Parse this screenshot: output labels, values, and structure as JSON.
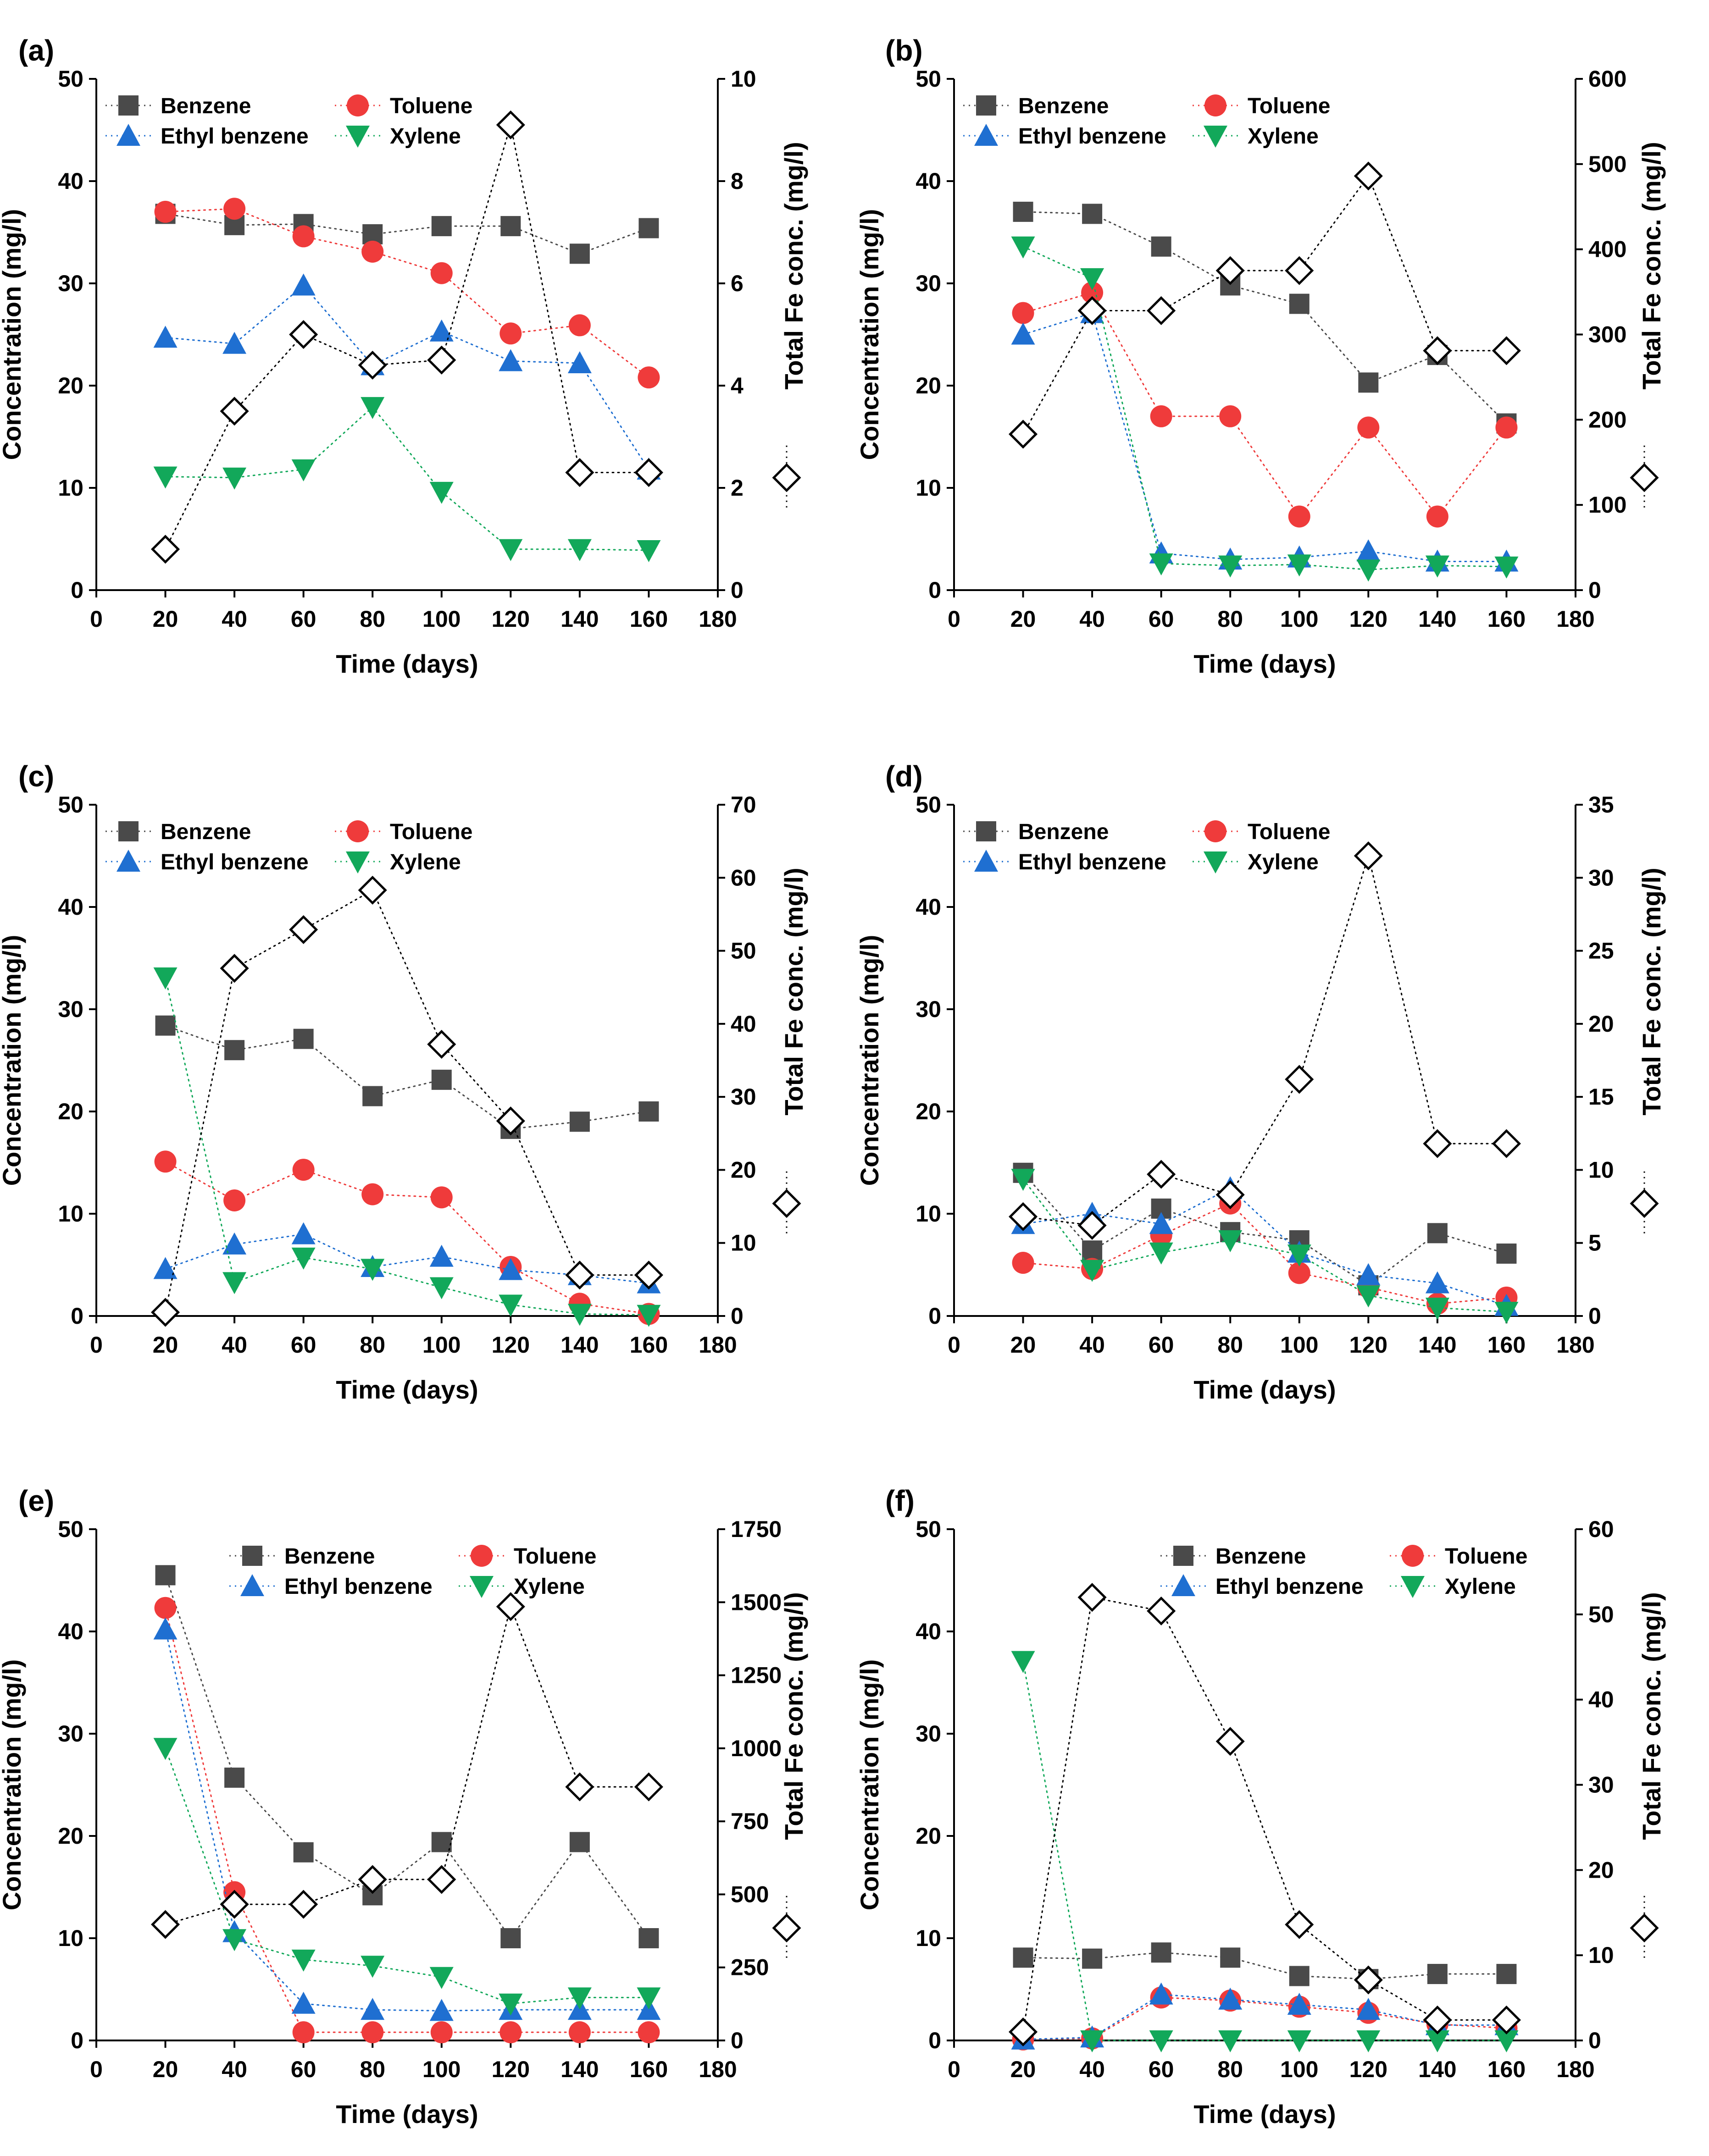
{
  "colors": {
    "benzene": "#4a4a4a",
    "toluene": "#ef3b3b",
    "ethylbenzene": "#1f6fd1",
    "xylene": "#12a85a",
    "fe": "#000000"
  },
  "chart_data": [
    {
      "type": "line",
      "panel": "(a)",
      "xlabel": "Time (days)",
      "ylabel": "Concentration (mg/l)",
      "y2label": "Total Fe conc. (mg/l)",
      "x_ticks": [
        "0",
        "20",
        "40",
        "60",
        "80",
        "100",
        "120",
        "140",
        "160",
        "180"
      ],
      "y_ticks": [
        "0",
        "10",
        "20",
        "30",
        "40",
        "50"
      ],
      "y2_ticks": [
        "0",
        "2",
        "4",
        "6",
        "8",
        "10"
      ],
      "xlim": [
        0,
        180
      ],
      "ylim": [
        0,
        50
      ],
      "y2lim": [
        0,
        10
      ],
      "legend_position": "top-left",
      "x": [
        20,
        40,
        60,
        80,
        100,
        120,
        140,
        160
      ],
      "series": [
        {
          "name": "Benzene",
          "key": "benzene",
          "marker": "square",
          "values": [
            36.8,
            35.7,
            35.8,
            34.8,
            35.6,
            35.6,
            32.9,
            35.4
          ]
        },
        {
          "name": "Toluene",
          "key": "toluene",
          "marker": "circle",
          "values": [
            37.0,
            37.3,
            34.6,
            33.1,
            31.0,
            25.1,
            25.9,
            20.8
          ]
        },
        {
          "name": "Ethyl benzene",
          "key": "ethylbenzene",
          "marker": "triangle-up",
          "values": [
            24.7,
            24.1,
            29.8,
            22.0,
            25.3,
            22.4,
            22.2,
            11.8
          ]
        },
        {
          "name": "Xylene",
          "key": "xylene",
          "marker": "triangle-down",
          "values": [
            11.1,
            11.0,
            11.8,
            17.9,
            9.6,
            4.0,
            4.0,
            3.9
          ]
        }
      ],
      "fe_series": {
        "name": "Total Fe",
        "values": [
          0.8,
          3.5,
          5.0,
          4.4,
          4.5,
          9.1,
          2.3,
          2.3
        ]
      }
    },
    {
      "type": "line",
      "panel": "(b)",
      "xlabel": "Time (days)",
      "ylabel": "Concentration (mg/l)",
      "y2label": "Total Fe conc. (mg/l)",
      "x_ticks": [
        "0",
        "20",
        "40",
        "60",
        "80",
        "100",
        "120",
        "140",
        "160",
        "180"
      ],
      "y_ticks": [
        "0",
        "10",
        "20",
        "30",
        "40",
        "50"
      ],
      "y2_ticks": [
        "0",
        "100",
        "200",
        "300",
        "400",
        "500",
        "600"
      ],
      "xlim": [
        0,
        180
      ],
      "ylim": [
        0,
        50
      ],
      "y2lim": [
        0,
        600
      ],
      "legend_position": "top-left",
      "x": [
        20,
        40,
        60,
        80,
        100,
        120,
        140,
        160
      ],
      "series": [
        {
          "name": "Benzene",
          "key": "benzene",
          "marker": "square",
          "values": [
            37.0,
            36.8,
            33.6,
            29.8,
            28.0,
            20.3,
            23.0,
            16.3
          ]
        },
        {
          "name": "Toluene",
          "key": "toluene",
          "marker": "circle",
          "values": [
            27.1,
            29.1,
            17.0,
            17.0,
            7.2,
            15.9,
            7.2,
            15.9
          ]
        },
        {
          "name": "Ethyl benzene",
          "key": "ethylbenzene",
          "marker": "triangle-up",
          "values": [
            25.0,
            27.1,
            3.6,
            3.0,
            3.2,
            3.8,
            2.8,
            2.8
          ]
        },
        {
          "name": "Xylene",
          "key": "xylene",
          "marker": "triangle-down",
          "values": [
            33.6,
            30.5,
            2.6,
            2.4,
            2.5,
            2.0,
            2.4,
            2.3
          ]
        }
      ],
      "fe_series": {
        "name": "Total Fe",
        "values": [
          183,
          328,
          328,
          375,
          375,
          486,
          281,
          281
        ]
      }
    },
    {
      "type": "line",
      "panel": "(c)",
      "xlabel": "Time (days)",
      "ylabel": "Concentration (mg/l)",
      "y2label": "Total Fe conc. (mg/l)",
      "x_ticks": [
        "0",
        "20",
        "40",
        "60",
        "80",
        "100",
        "120",
        "140",
        "160",
        "180"
      ],
      "y_ticks": [
        "0",
        "10",
        "20",
        "30",
        "40",
        "50"
      ],
      "y2_ticks": [
        "0",
        "10",
        "20",
        "30",
        "40",
        "50",
        "60",
        "70"
      ],
      "xlim": [
        0,
        180
      ],
      "ylim": [
        0,
        50
      ],
      "y2lim": [
        0,
        70
      ],
      "legend_position": "top-left",
      "x": [
        20,
        40,
        60,
        80,
        100,
        120,
        140,
        160
      ],
      "series": [
        {
          "name": "Benzene",
          "key": "benzene",
          "marker": "square",
          "values": [
            28.4,
            26.0,
            27.1,
            21.5,
            23.1,
            18.3,
            19.0,
            20.0
          ]
        },
        {
          "name": "Toluene",
          "key": "toluene",
          "marker": "circle",
          "values": [
            15.1,
            11.3,
            14.3,
            11.9,
            11.6,
            4.8,
            1.2,
            0.2
          ]
        },
        {
          "name": "Ethyl benzene",
          "key": "ethylbenzene",
          "marker": "triangle-up",
          "values": [
            4.6,
            7.0,
            8.0,
            4.8,
            5.8,
            4.5,
            4.0,
            3.2
          ]
        },
        {
          "name": "Xylene",
          "key": "xylene",
          "marker": "triangle-down",
          "values": [
            33.1,
            3.3,
            5.7,
            4.6,
            2.8,
            1.1,
            0.2,
            0.1
          ]
        }
      ],
      "fe_series": {
        "name": "Total Fe",
        "values": [
          0.5,
          47.6,
          52.9,
          58.3,
          37.2,
          26.7,
          5.6,
          5.6
        ]
      }
    },
    {
      "type": "line",
      "panel": "(d)",
      "xlabel": "Time (days)",
      "ylabel": "Concentration (mg/l)",
      "y2label": "Total Fe conc. (mg/l)",
      "x_ticks": [
        "0",
        "20",
        "40",
        "60",
        "80",
        "100",
        "120",
        "140",
        "160",
        "180"
      ],
      "y_ticks": [
        "0",
        "10",
        "20",
        "30",
        "40",
        "50"
      ],
      "y2_ticks": [
        "0",
        "5",
        "10",
        "15",
        "20",
        "25",
        "30",
        "35"
      ],
      "xlim": [
        0,
        180
      ],
      "ylim": [
        0,
        50
      ],
      "y2lim": [
        0,
        35
      ],
      "legend_position": "top-left",
      "x": [
        20,
        40,
        60,
        80,
        100,
        120,
        140,
        160
      ],
      "series": [
        {
          "name": "Benzene",
          "key": "benzene",
          "marker": "square",
          "values": [
            14.0,
            6.4,
            10.5,
            8.2,
            7.4,
            3.0,
            8.1,
            6.1
          ]
        },
        {
          "name": "Toluene",
          "key": "toluene",
          "marker": "circle",
          "values": [
            5.2,
            4.6,
            7.9,
            11.0,
            4.2,
            2.8,
            1.2,
            1.8
          ]
        },
        {
          "name": "Ethyl benzene",
          "key": "ethylbenzene",
          "marker": "triangle-up",
          "values": [
            9.0,
            10.0,
            9.0,
            12.5,
            6.2,
            4.0,
            3.2,
            1.0
          ]
        },
        {
          "name": "Xylene",
          "key": "xylene",
          "marker": "triangle-down",
          "values": [
            13.4,
            4.5,
            6.2,
            7.4,
            6.0,
            2.0,
            0.8,
            0.4
          ]
        }
      ],
      "fe_series": {
        "name": "Total Fe",
        "values": [
          6.8,
          6.2,
          9.7,
          8.3,
          16.2,
          31.5,
          11.8,
          11.8
        ]
      }
    },
    {
      "type": "line",
      "panel": "(e)",
      "xlabel": "Time (days)",
      "ylabel": "Concentration (mg/l)",
      "y2label": "Total Fe conc. (mg/l)",
      "x_ticks": [
        "0",
        "20",
        "40",
        "60",
        "80",
        "100",
        "120",
        "140",
        "160",
        "180"
      ],
      "y_ticks": [
        "0",
        "10",
        "20",
        "30",
        "40",
        "50"
      ],
      "y2_ticks": [
        "0",
        "250",
        "500",
        "750",
        "1000",
        "1250",
        "1500",
        "1750"
      ],
      "xlim": [
        0,
        180
      ],
      "ylim": [
        0,
        50
      ],
      "y2lim": [
        0,
        1750
      ],
      "legend_position": "top-center",
      "x": [
        20,
        40,
        60,
        80,
        100,
        120,
        140,
        160
      ],
      "series": [
        {
          "name": "Benzene",
          "key": "benzene",
          "marker": "square",
          "values": [
            45.5,
            25.7,
            18.4,
            14.2,
            19.4,
            10.0,
            19.4,
            10.0
          ]
        },
        {
          "name": "Toluene",
          "key": "toluene",
          "marker": "circle",
          "values": [
            42.3,
            14.5,
            0.8,
            0.8,
            0.8,
            0.8,
            0.8,
            0.8
          ]
        },
        {
          "name": "Ethyl benzene",
          "key": "ethylbenzene",
          "marker": "triangle-up",
          "values": [
            40.2,
            10.6,
            3.6,
            3.0,
            2.9,
            3.0,
            3.0,
            3.0
          ]
        },
        {
          "name": "Xylene",
          "key": "xylene",
          "marker": "triangle-down",
          "values": [
            28.6,
            9.9,
            7.9,
            7.3,
            6.2,
            3.6,
            4.2,
            4.2
          ]
        }
      ],
      "fe_series": {
        "name": "Total Fe",
        "values": [
          397,
          466,
          466,
          551,
          551,
          1485,
          868,
          868
        ]
      }
    },
    {
      "type": "line",
      "panel": "(f)",
      "xlabel": "Time (days)",
      "ylabel": "Concentration (mg/l)",
      "y2label": "Total Fe conc. (mg/l)",
      "x_ticks": [
        "0",
        "20",
        "40",
        "60",
        "80",
        "100",
        "120",
        "140",
        "160",
        "180"
      ],
      "y_ticks": [
        "0",
        "10",
        "20",
        "30",
        "40",
        "50"
      ],
      "y2_ticks": [
        "0",
        "10",
        "20",
        "30",
        "40",
        "50",
        "60"
      ],
      "xlim": [
        0,
        180
      ],
      "ylim": [
        0,
        50
      ],
      "y2lim": [
        0,
        60
      ],
      "legend_position": "top-right",
      "x": [
        20,
        40,
        60,
        80,
        100,
        120,
        140,
        160
      ],
      "series": [
        {
          "name": "Benzene",
          "key": "benzene",
          "marker": "square",
          "values": [
            8.1,
            8.0,
            8.6,
            8.1,
            6.3,
            6.0,
            6.5,
            6.5
          ]
        },
        {
          "name": "Toluene",
          "key": "toluene",
          "marker": "circle",
          "values": [
            0.1,
            0.2,
            4.2,
            3.9,
            3.3,
            2.7,
            1.6,
            1.2
          ]
        },
        {
          "name": "Ethyl benzene",
          "key": "ethylbenzene",
          "marker": "triangle-up",
          "values": [
            0.1,
            0.3,
            4.5,
            4.0,
            3.5,
            3.0,
            1.5,
            1.5
          ]
        },
        {
          "name": "Xylene",
          "key": "xylene",
          "marker": "triangle-down",
          "values": [
            37.1,
            0.0,
            0.0,
            0.0,
            0.0,
            0.0,
            0.0,
            0.0
          ]
        }
      ],
      "fe_series": {
        "name": "Total Fe",
        "values": [
          1.0,
          52.0,
          50.4,
          35.1,
          13.6,
          7.1,
          2.4,
          2.4
        ]
      }
    }
  ]
}
